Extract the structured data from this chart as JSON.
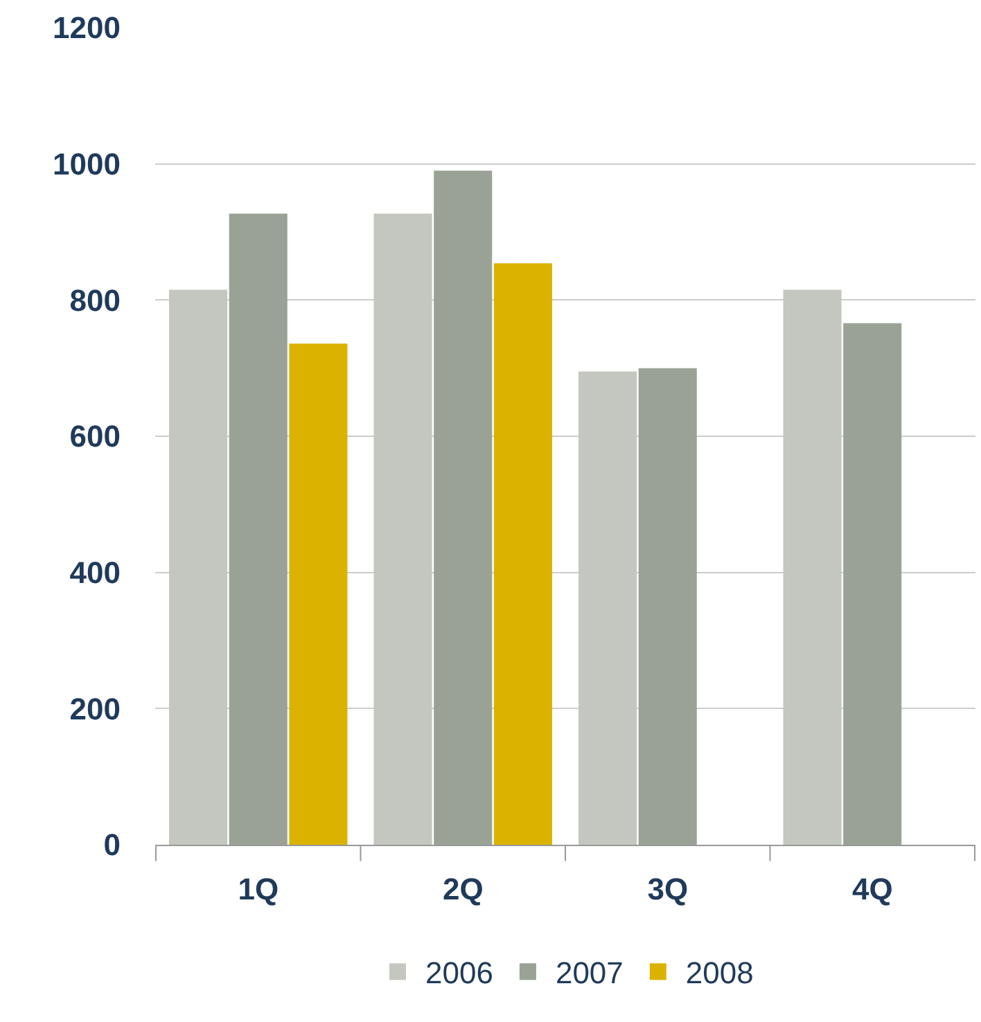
{
  "chart_data": {
    "type": "bar",
    "categories": [
      "1Q",
      "2Q",
      "3Q",
      "4Q"
    ],
    "series": [
      {
        "name": "2006",
        "color": "#c3c7bf",
        "values": [
          815,
          927,
          695,
          815
        ]
      },
      {
        "name": "2007",
        "color": "#9aa296",
        "values": [
          927,
          990,
          700,
          766
        ]
      },
      {
        "name": "2008",
        "color": "#dcb200",
        "values": [
          736,
          854,
          null,
          null
        ]
      }
    ],
    "ylim": [
      0,
      1200
    ],
    "yticks": [
      0,
      200,
      400,
      600,
      800,
      1000,
      1200
    ],
    "grid": "y",
    "legend": "bottom"
  }
}
